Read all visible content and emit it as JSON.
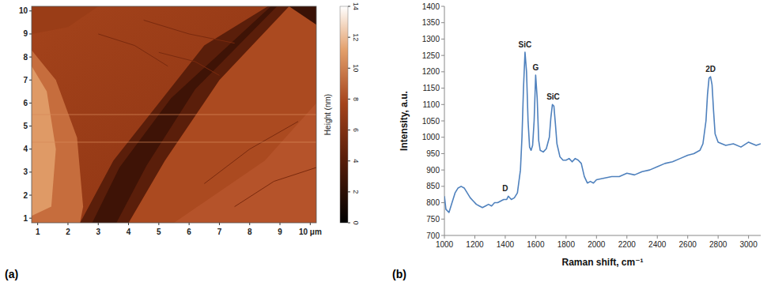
{
  "chart_data": [
    {
      "type": "image",
      "panel_label": "(a)",
      "xlim": [
        0.8,
        10.2
      ],
      "ylim": [
        0.8,
        10.2
      ],
      "xticks": [
        1,
        2,
        3,
        4,
        5,
        6,
        7,
        8,
        9,
        {
          "value": 10,
          "label": "10 μm"
        }
      ],
      "yticks": [
        1,
        2,
        3,
        4,
        5,
        6,
        7,
        8,
        9,
        10
      ],
      "colorbar_label": "Height (nm)",
      "colorbar_range": [
        0,
        14
      ],
      "colorbar_ticks": [
        0,
        2,
        4,
        6,
        8,
        10,
        12,
        14
      ]
    },
    {
      "type": "line",
      "panel_label": "(b)",
      "x_label": "Raman shift, cm⁻¹",
      "y_label": "Intensity, a.u.",
      "color": "#4f81bd",
      "xlim": [
        1000,
        3080
      ],
      "ylim": [
        700,
        1400
      ],
      "xticks": [
        1000,
        1200,
        1400,
        1600,
        1800,
        2000,
        2200,
        2400,
        2600,
        2800,
        3000
      ],
      "yticks": [
        700,
        750,
        800,
        850,
        900,
        950,
        1000,
        1050,
        1100,
        1150,
        1200,
        1250,
        1300,
        1350,
        1400
      ],
      "x": [
        1000,
        1010,
        1030,
        1050,
        1070,
        1090,
        1110,
        1130,
        1150,
        1170,
        1190,
        1210,
        1230,
        1250,
        1270,
        1290,
        1310,
        1330,
        1350,
        1370,
        1390,
        1410,
        1420,
        1440,
        1460,
        1480,
        1500,
        1510,
        1520,
        1530,
        1540,
        1550,
        1560,
        1570,
        1580,
        1590,
        1600,
        1610,
        1620,
        1630,
        1650,
        1670,
        1690,
        1700,
        1710,
        1720,
        1730,
        1740,
        1760,
        1780,
        1800,
        1820,
        1840,
        1860,
        1880,
        1900,
        1920,
        1940,
        1960,
        1980,
        2000,
        2050,
        2100,
        2150,
        2200,
        2250,
        2300,
        2350,
        2400,
        2450,
        2500,
        2550,
        2600,
        2640,
        2680,
        2700,
        2720,
        2730,
        2740,
        2750,
        2760,
        2770,
        2780,
        2800,
        2850,
        2900,
        2950,
        3000,
        3050,
        3080
      ],
      "values": [
        820,
        780,
        770,
        800,
        830,
        845,
        850,
        845,
        830,
        815,
        805,
        795,
        790,
        785,
        790,
        795,
        790,
        800,
        800,
        805,
        810,
        810,
        820,
        810,
        815,
        830,
        900,
        1000,
        1150,
        1260,
        1200,
        1050,
        970,
        960,
        975,
        1050,
        1190,
        1120,
        990,
        960,
        955,
        965,
        1000,
        1060,
        1100,
        1095,
        1040,
        980,
        940,
        930,
        930,
        935,
        925,
        935,
        930,
        920,
        880,
        860,
        865,
        860,
        870,
        875,
        880,
        880,
        890,
        885,
        895,
        900,
        910,
        920,
        925,
        935,
        945,
        950,
        960,
        980,
        1050,
        1130,
        1180,
        1185,
        1160,
        1080,
        1010,
        985,
        975,
        980,
        970,
        985,
        975,
        980
      ],
      "annotations": [
        {
          "text": "D",
          "x": 1400,
          "y": 835
        },
        {
          "text": "SiC",
          "x": 1530,
          "y": 1275
        },
        {
          "text": "G",
          "x": 1600,
          "y": 1205
        },
        {
          "text": "SiC",
          "x": 1715,
          "y": 1115
        },
        {
          "text": "2D",
          "x": 2750,
          "y": 1200
        }
      ]
    }
  ]
}
